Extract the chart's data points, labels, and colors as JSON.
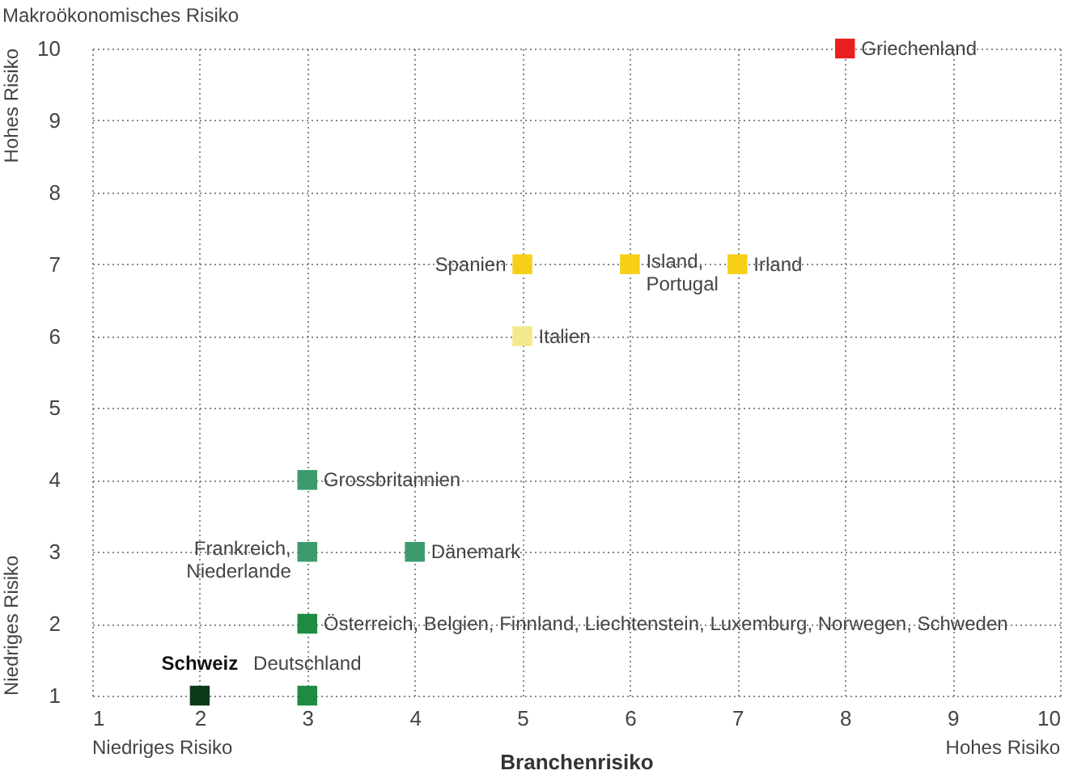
{
  "chart_data": {
    "type": "scatter",
    "xlabel": "Branchenrisiko",
    "ylabel": "Makroökonomisches Risiko",
    "x": [
      8,
      5,
      6,
      7,
      5,
      3,
      3,
      4,
      3,
      2,
      3
    ],
    "values": [
      10,
      7,
      7,
      7,
      6,
      4,
      3,
      3,
      2,
      1,
      1
    ],
    "colors": [
      "#e8201d",
      "#f7cf16",
      "#f7cf16",
      "#f7cf16",
      "#f4e88c",
      "#3c9a6c",
      "#3c9a6c",
      "#3c9a6c",
      "#1e8b43",
      "#0b3a18",
      "#1e8b43"
    ],
    "marker": "square",
    "grid": true,
    "xlim": [
      1,
      10
    ],
    "xticks": [
      1,
      2,
      3,
      4,
      5,
      6,
      7,
      8,
      9,
      10
    ],
    "ylim": [
      1,
      10
    ],
    "yticks": [
      1,
      2,
      3,
      4,
      5,
      6,
      7,
      8,
      9,
      10
    ],
    "annotations": [
      {
        "text": "Griechenland",
        "x": 8,
        "y": 10
      },
      {
        "text": "Spanien",
        "x": 5,
        "y": 7
      },
      {
        "text": "Island,\nPortugal",
        "x": 6,
        "y": 7
      },
      {
        "text": "Irland",
        "x": 7,
        "y": 7
      },
      {
        "text": "Italien",
        "x": 5,
        "y": 6
      },
      {
        "text": "Grossbritannien",
        "x": 3,
        "y": 4
      },
      {
        "text": "Frankreich,\nNiederlande",
        "x": 3,
        "y": 3
      },
      {
        "text": "Dänemark",
        "x": 4,
        "y": 3
      },
      {
        "text": "Österreich, Belgien, Finnland, Liechtenstein, Luxemburg, Norwegen, Schweden",
        "x": 3,
        "y": 2
      },
      {
        "text": "Schweiz",
        "x": 2,
        "y": 1
      },
      {
        "text": "Deutschland",
        "x": 3,
        "y": 1
      },
      "Niedriges Risiko",
      "Hohes Risiko",
      "Niedriges Risiko",
      "Hohes Risiko"
    ]
  }
}
